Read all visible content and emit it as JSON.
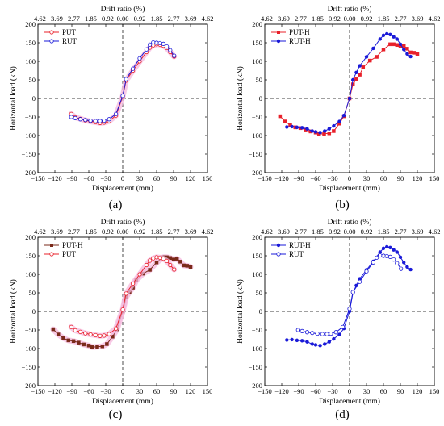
{
  "colors": {
    "red": "#e8202a",
    "blue": "#1a1ad8",
    "brown": "#7a2a1a",
    "halo": "#f6b8dd"
  },
  "common": {
    "xlabel": "Displacement (mm)",
    "ylabel": "Horizontal load (kN)",
    "top_label": "Drift ratio (%)",
    "xticks": [
      "−150",
      "−120",
      "−90",
      "−60",
      "−30",
      "0",
      "30",
      "60",
      "90",
      "120",
      "150"
    ],
    "yticks": [
      "200",
      "150",
      "100",
      "50",
      "0",
      "−50",
      "−100",
      "−150",
      "−200"
    ],
    "top_ticks": [
      "−4.62",
      "−3.69",
      "−2.77",
      "−1.85",
      "−0.92",
      "0.00",
      "0.92",
      "1.85",
      "2.77",
      "3.69",
      "4.62"
    ],
    "xlim": [
      -150,
      150
    ],
    "ylim": [
      -200,
      200
    ]
  },
  "chart_data": [
    {
      "panel": "(a)",
      "type": "line",
      "legend": "top-left",
      "series": [
        {
          "name": "PUT",
          "color": "#e8202a",
          "marker": "open-circle",
          "halo": true,
          "x": [
            -91,
            -84,
            -75,
            -66,
            -57,
            -48,
            -40,
            -33,
            -24,
            -12,
            0,
            6,
            18,
            30,
            42,
            48,
            54,
            60,
            66,
            72,
            78,
            84,
            91
          ],
          "y": [
            -42,
            -51,
            -55,
            -59,
            -62,
            -64,
            -66,
            -65,
            -61,
            -46,
            5,
            48,
            75,
            100,
            125,
            137,
            143,
            146,
            145,
            142,
            136,
            125,
            113
          ]
        },
        {
          "name": "RUT",
          "color": "#1a1ad8",
          "marker": "open-circle",
          "halo": false,
          "x": [
            -91,
            -84,
            -75,
            -66,
            -57,
            -48,
            -40,
            -33,
            -24,
            -12,
            0,
            6,
            18,
            30,
            42,
            48,
            54,
            60,
            66,
            72,
            78,
            84,
            91
          ],
          "y": [
            -50,
            -53,
            -56,
            -58,
            -60,
            -61,
            -61,
            -60,
            -56,
            -42,
            7,
            52,
            80,
            108,
            132,
            145,
            151,
            150,
            149,
            147,
            140,
            130,
            115
          ]
        }
      ]
    },
    {
      "panel": "(b)",
      "type": "line",
      "legend": "top-left",
      "series": [
        {
          "name": "PUT-H",
          "color": "#e8202a",
          "marker": "filled-square",
          "halo": false,
          "x": [
            -123,
            -114,
            -105,
            -96,
            -87,
            -78,
            -69,
            -60,
            -54,
            -45,
            -36,
            -28,
            -18,
            -10,
            0,
            6,
            12,
            18,
            24,
            36,
            48,
            60,
            72,
            78,
            84,
            90,
            96,
            102,
            108,
            114,
            120
          ],
          "y": [
            -48,
            -62,
            -72,
            -78,
            -80,
            -84,
            -89,
            -92,
            -96,
            -95,
            -94,
            -88,
            -68,
            -48,
            0,
            38,
            52,
            64,
            84,
            102,
            112,
            132,
            146,
            146,
            144,
            140,
            142,
            134,
            124,
            123,
            120
          ]
        },
        {
          "name": "RUT-H",
          "color": "#1a1ad8",
          "marker": "filled-circle",
          "halo": false,
          "x": [
            -111,
            -102,
            -93,
            -84,
            -75,
            -66,
            -60,
            -52,
            -44,
            -36,
            -28,
            -18,
            -10,
            0,
            6,
            12,
            18,
            30,
            42,
            54,
            60,
            66,
            72,
            78,
            84,
            90,
            96,
            102,
            108
          ],
          "y": [
            -77,
            -76,
            -78,
            -79,
            -82,
            -88,
            -90,
            -92,
            -88,
            -82,
            -74,
            -62,
            -46,
            0,
            50,
            70,
            88,
            112,
            135,
            160,
            170,
            174,
            172,
            166,
            160,
            146,
            132,
            120,
            113
          ]
        }
      ]
    },
    {
      "panel": "(c)",
      "type": "line",
      "legend": "top-left",
      "series": [
        {
          "name": "PUT-H",
          "color": "#7a2a1a",
          "marker": "filled-square",
          "halo": true,
          "x": [
            -123,
            -114,
            -105,
            -96,
            -87,
            -78,
            -69,
            -60,
            -54,
            -45,
            -36,
            -28,
            -18,
            -10,
            0,
            6,
            12,
            18,
            24,
            36,
            48,
            60,
            72,
            78,
            84,
            90,
            96,
            102,
            108,
            114,
            120
          ],
          "y": [
            -48,
            -62,
            -72,
            -78,
            -80,
            -84,
            -89,
            -92,
            -96,
            -95,
            -94,
            -88,
            -68,
            -48,
            0,
            38,
            52,
            64,
            84,
            102,
            112,
            132,
            146,
            146,
            144,
            140,
            142,
            134,
            124,
            123,
            120
          ]
        },
        {
          "name": "PUT",
          "color": "#e8202a",
          "marker": "open-circle",
          "halo": true,
          "x": [
            -91,
            -84,
            -75,
            -66,
            -57,
            -48,
            -40,
            -33,
            -24,
            -12,
            0,
            6,
            18,
            30,
            42,
            48,
            54,
            60,
            66,
            72,
            78,
            84,
            91
          ],
          "y": [
            -42,
            -51,
            -55,
            -59,
            -62,
            -64,
            -66,
            -65,
            -61,
            -46,
            5,
            48,
            75,
            100,
            125,
            137,
            143,
            146,
            145,
            142,
            136,
            125,
            113
          ]
        }
      ]
    },
    {
      "panel": "(d)",
      "type": "line",
      "legend": "top-left",
      "series": [
        {
          "name": "RUT-H",
          "color": "#1a1ad8",
          "marker": "filled-circle",
          "halo": false,
          "x": [
            -111,
            -102,
            -93,
            -84,
            -75,
            -66,
            -60,
            -52,
            -44,
            -36,
            -28,
            -18,
            -10,
            0,
            6,
            12,
            18,
            30,
            42,
            54,
            60,
            66,
            72,
            78,
            84,
            90,
            96,
            102,
            108
          ],
          "y": [
            -77,
            -76,
            -78,
            -79,
            -82,
            -88,
            -90,
            -92,
            -88,
            -82,
            -74,
            -62,
            -46,
            0,
            50,
            70,
            88,
            112,
            135,
            160,
            170,
            174,
            172,
            166,
            160,
            146,
            132,
            120,
            113
          ]
        },
        {
          "name": "RUT",
          "color": "#1a1ad8",
          "marker": "open-circle",
          "halo": false,
          "x": [
            -91,
            -84,
            -75,
            -66,
            -57,
            -48,
            -40,
            -33,
            -24,
            -12,
            0,
            6,
            18,
            30,
            42,
            48,
            54,
            60,
            66,
            72,
            78,
            84,
            91
          ],
          "y": [
            -50,
            -53,
            -56,
            -58,
            -60,
            -61,
            -61,
            -60,
            -56,
            -42,
            7,
            52,
            80,
            108,
            132,
            145,
            151,
            150,
            149,
            147,
            140,
            130,
            115
          ]
        }
      ]
    }
  ]
}
